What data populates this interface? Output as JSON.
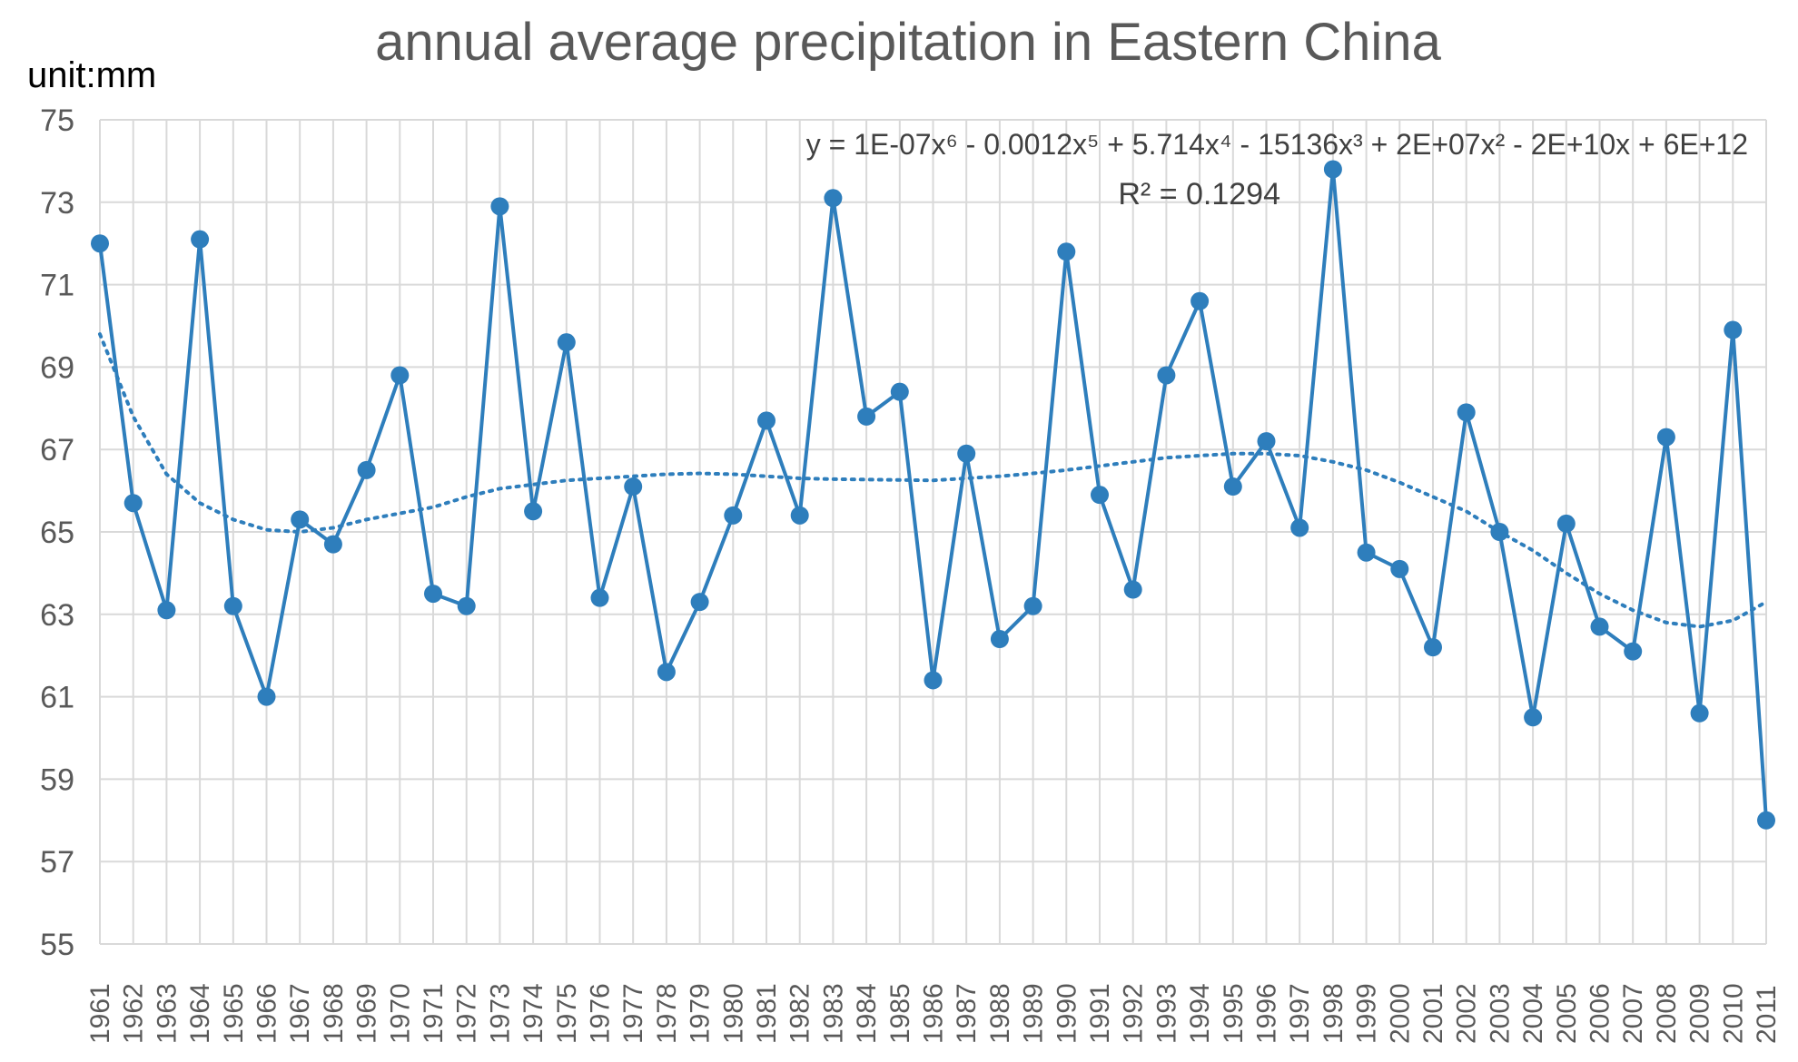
{
  "chart_data": {
    "type": "line",
    "title": "annual average precipitation in Eastern China",
    "unit_label": "unit:mm",
    "xlabel": "",
    "ylabel": "",
    "ylim": [
      55,
      75
    ],
    "yticks": [
      55,
      57,
      59,
      61,
      63,
      65,
      67,
      69,
      71,
      73,
      75
    ],
    "grid": true,
    "categories": [
      "1961",
      "1962",
      "1963",
      "1964",
      "1965",
      "1966",
      "1967",
      "1968",
      "1969",
      "1970",
      "1971",
      "1972",
      "1973",
      "1974",
      "1975",
      "1976",
      "1977",
      "1978",
      "1979",
      "1980",
      "1981",
      "1982",
      "1983",
      "1984",
      "1985",
      "1986",
      "1987",
      "1988",
      "1989",
      "1990",
      "1991",
      "1992",
      "1993",
      "1994",
      "1995",
      "1996",
      "1997",
      "1998",
      "1999",
      "2000",
      "2001",
      "2002",
      "2003",
      "2004",
      "2005",
      "2006",
      "2007",
      "2008",
      "2009",
      "2010",
      "2011"
    ],
    "series": [
      {
        "name": "precipitation",
        "color": "#2e7ebc",
        "values": [
          72.0,
          65.7,
          63.1,
          72.1,
          63.2,
          61.0,
          65.3,
          64.7,
          66.5,
          68.8,
          63.5,
          63.2,
          72.9,
          65.5,
          69.6,
          63.4,
          66.1,
          61.6,
          63.3,
          65.4,
          67.7,
          65.4,
          73.1,
          67.8,
          68.4,
          61.4,
          66.9,
          62.4,
          63.2,
          71.8,
          65.9,
          63.6,
          68.8,
          70.6,
          66.1,
          67.2,
          65.1,
          73.8,
          64.5,
          64.1,
          62.2,
          67.9,
          65.0,
          60.5,
          65.2,
          62.7,
          62.1,
          67.3,
          60.6,
          69.9,
          58.0
        ]
      }
    ],
    "trendline": {
      "type": "polynomial",
      "order": 6,
      "style": "dotted",
      "color": "#2e7ebc",
      "equation": "y = 1E-07x⁶ - 0.0012x⁵ + 5.714x⁴ - 15136x³ + 2E+07x² - 2E+10x + 6E+12",
      "r_squared_label": "R² = 0.1294",
      "values": [
        69.8,
        67.8,
        66.4,
        65.7,
        65.3,
        65.05,
        65.0,
        65.1,
        65.3,
        65.45,
        65.6,
        65.85,
        66.05,
        66.15,
        66.25,
        66.3,
        66.35,
        66.4,
        66.42,
        66.4,
        66.35,
        66.3,
        66.28,
        66.27,
        66.26,
        66.25,
        66.3,
        66.35,
        66.42,
        66.5,
        66.6,
        66.7,
        66.8,
        66.85,
        66.9,
        66.9,
        66.85,
        66.7,
        66.5,
        66.2,
        65.85,
        65.5,
        65.0,
        64.55,
        64.0,
        63.5,
        63.1,
        62.8,
        62.7,
        62.85,
        63.3
      ]
    }
  }
}
